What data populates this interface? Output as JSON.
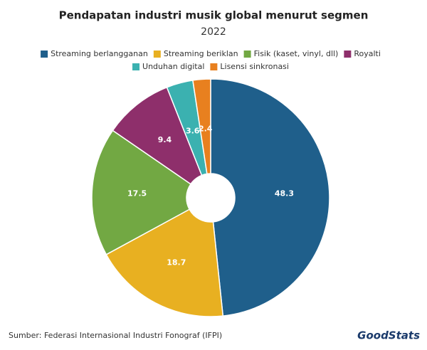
{
  "chart_data": {
    "type": "donut",
    "title": "Pendapatan industri musik global menurut segmen",
    "subtitle": "2022",
    "categories": [
      "Streaming berlangganan",
      "Streaming beriklan",
      "Fisik (kaset, vinyl, dll)",
      "Royalti",
      "Unduhan digital",
      "Lisensi sinkronasi"
    ],
    "values": [
      48.3,
      18.7,
      17.5,
      9.4,
      3.6,
      2.4
    ],
    "colors": [
      "#1f5f8b",
      "#e8b021",
      "#72a843",
      "#8e2f6b",
      "#3bb1b0",
      "#e8801f"
    ],
    "legend": "top",
    "source": "Sumber: Federasi Internasional Industri Fonograf (IFPI)",
    "logo": "GoodStats"
  }
}
